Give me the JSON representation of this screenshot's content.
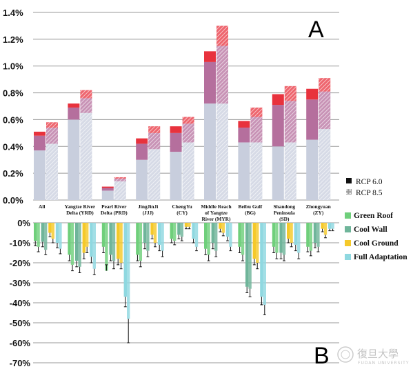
{
  "chart_data": [
    {
      "panel_label": "A",
      "type": "bar",
      "stacked": true,
      "grid": true,
      "ylim": [
        0,
        1.4
      ],
      "yticks": [
        "0.0%",
        "0.2%",
        "0.4%",
        "0.6%",
        "0.8%",
        "1.0%",
        "1.2%",
        "1.4%"
      ],
      "categories": [
        "All",
        "Yangtze River Delta (YRD)",
        "Pearl River Delta (PRD)",
        "JingJinJi (JJJ)",
        "ChengYu (CY)",
        "Middle Reach of Yangtze River (MYR)",
        "Beibu Gulf (BG)",
        "Shandong Peninsula (SD)",
        "Zhongyuan (ZY)"
      ],
      "category_lines": [
        [
          "All"
        ],
        [
          "Yangtze River",
          "Delta (YRD)"
        ],
        [
          "Pearl River",
          "Delta (PRD)"
        ],
        [
          "JingJinJi",
          "(JJJ)"
        ],
        [
          "ChengYu",
          "(CY)"
        ],
        [
          "Middle Reach",
          "of Yangtze",
          "River (MYR)"
        ],
        [
          "Beibu Gulf",
          "(BG)"
        ],
        [
          "Shandong",
          "Peninsula",
          "(SD)"
        ],
        [
          "Zhongyuan",
          "(ZY)"
        ]
      ],
      "scenarios": [
        "RCP 6.0",
        "RCP 8.5"
      ],
      "layer_colors": [
        "#c8cedd",
        "#b56f9d",
        "#e8323d"
      ],
      "series": [
        {
          "scenario": "RCP 6.0",
          "cumulative": [
            [
              0.37,
              0.48,
              0.51
            ],
            [
              0.6,
              0.69,
              0.72
            ],
            [
              0.07,
              0.09,
              0.1
            ],
            [
              0.3,
              0.42,
              0.46
            ],
            [
              0.36,
              0.5,
              0.55
            ],
            [
              0.72,
              1.03,
              1.11
            ],
            [
              0.43,
              0.54,
              0.59
            ],
            [
              0.4,
              0.71,
              0.79
            ],
            [
              0.45,
              0.75,
              0.83
            ]
          ]
        },
        {
          "scenario": "RCP 8.5",
          "cumulative": [
            [
              0.42,
              0.54,
              0.58
            ],
            [
              0.65,
              0.76,
              0.82
            ],
            [
              0.14,
              0.16,
              0.17
            ],
            [
              0.38,
              0.5,
              0.55
            ],
            [
              0.43,
              0.57,
              0.62
            ],
            [
              0.72,
              1.15,
              1.3
            ],
            [
              0.43,
              0.62,
              0.69
            ],
            [
              0.43,
              0.74,
              0.85
            ],
            [
              0.53,
              0.81,
              0.91
            ]
          ]
        }
      ]
    },
    {
      "panel_label": "B",
      "type": "bar",
      "grid": true,
      "ylim": [
        -70,
        0
      ],
      "yticks": [
        "0%",
        "-10%",
        "-20%",
        "-30%",
        "-40%",
        "-50%",
        "-60%",
        "-70%"
      ],
      "series_names": [
        "Green Roof",
        "Cool Wall",
        "Cool Ground",
        "Full Adaptation"
      ],
      "series_colors": [
        "#6fcf7b",
        "#6fb59a",
        "#f5c92a",
        "#8fd8e0"
      ],
      "groups": [
        {
          "region": "All",
          "values": [
            [
              -9,
              -12
            ],
            [
              -9.5,
              -13.5
            ],
            [
              -5,
              -8
            ],
            [
              -10,
              -13
            ]
          ],
          "error": [
            [
              2.5,
              2.5
            ],
            [
              2.5,
              2.5
            ],
            [
              2,
              2
            ],
            [
              2.5,
              2.5
            ]
          ]
        },
        {
          "region": "YRD",
          "values": [
            [
              -16,
              -21
            ],
            [
              -19,
              -22
            ],
            [
              -15,
              -12
            ],
            [
              -17,
              -23
            ]
          ],
          "error": [
            [
              3,
              3
            ],
            [
              3,
              3
            ],
            [
              3,
              3
            ],
            [
              3,
              3
            ]
          ]
        },
        {
          "region": "PRD",
          "values": [
            [
              -12,
              -24
            ],
            [
              -16,
              -19
            ],
            [
              -18,
              -20
            ],
            [
              -37,
              -48
            ]
          ],
          "error": [
            [
              3,
              -3
            ],
            [
              3,
              4
            ],
            [
              3,
              3
            ],
            [
              5,
              12
            ]
          ]
        },
        {
          "region": "JJJ",
          "values": [
            [
              -16,
              -19
            ],
            [
              -10,
              -14
            ],
            [
              -6,
              -10
            ],
            [
              -11,
              -14
            ]
          ],
          "error": [
            [
              3,
              3
            ],
            [
              3,
              3
            ],
            [
              2,
              2
            ],
            [
              3,
              3
            ]
          ]
        },
        {
          "region": "CY",
          "values": [
            [
              -8,
              -9
            ],
            [
              -6,
              -7
            ],
            [
              -2,
              -2
            ],
            [
              -8,
              -12
            ]
          ],
          "error": [
            [
              2,
              2
            ],
            [
              2,
              2
            ],
            [
              1,
              1
            ],
            [
              2,
              2
            ]
          ]
        },
        {
          "region": "MYR",
          "values": [
            [
              -13,
              -16
            ],
            [
              -10,
              -14
            ],
            [
              -3,
              -5
            ],
            [
              -7,
              -12
            ]
          ],
          "error": [
            [
              3,
              3
            ],
            [
              3,
              3
            ],
            [
              1.5,
              1.5
            ],
            [
              2,
              2
            ]
          ]
        },
        {
          "region": "BG",
          "values": [
            [
              -12,
              -16
            ],
            [
              -32,
              -33
            ],
            [
              -18,
              -20
            ],
            [
              -37,
              -41
            ]
          ],
          "error": [
            [
              3,
              3
            ],
            [
              3,
              4
            ],
            [
              3,
              3
            ],
            [
              4,
              5
            ]
          ]
        },
        {
          "region": "SD",
          "values": [
            [
              -12,
              -15
            ],
            [
              -15,
              -16
            ],
            [
              -8,
              -10
            ],
            [
              -11,
              -15
            ]
          ],
          "error": [
            [
              3,
              3
            ],
            [
              3,
              3
            ],
            [
              2,
              2
            ],
            [
              3,
              3
            ]
          ]
        },
        {
          "region": "ZY",
          "values": [
            [
              -12,
              -14
            ],
            [
              -10,
              -12
            ],
            [
              -3,
              -6
            ],
            [
              -3,
              -3
            ]
          ],
          "error": [
            [
              2.5,
              2.5
            ],
            [
              2.5,
              2.5
            ],
            [
              1.5,
              1.5
            ],
            [
              1,
              1
            ]
          ]
        }
      ]
    }
  ]
}
